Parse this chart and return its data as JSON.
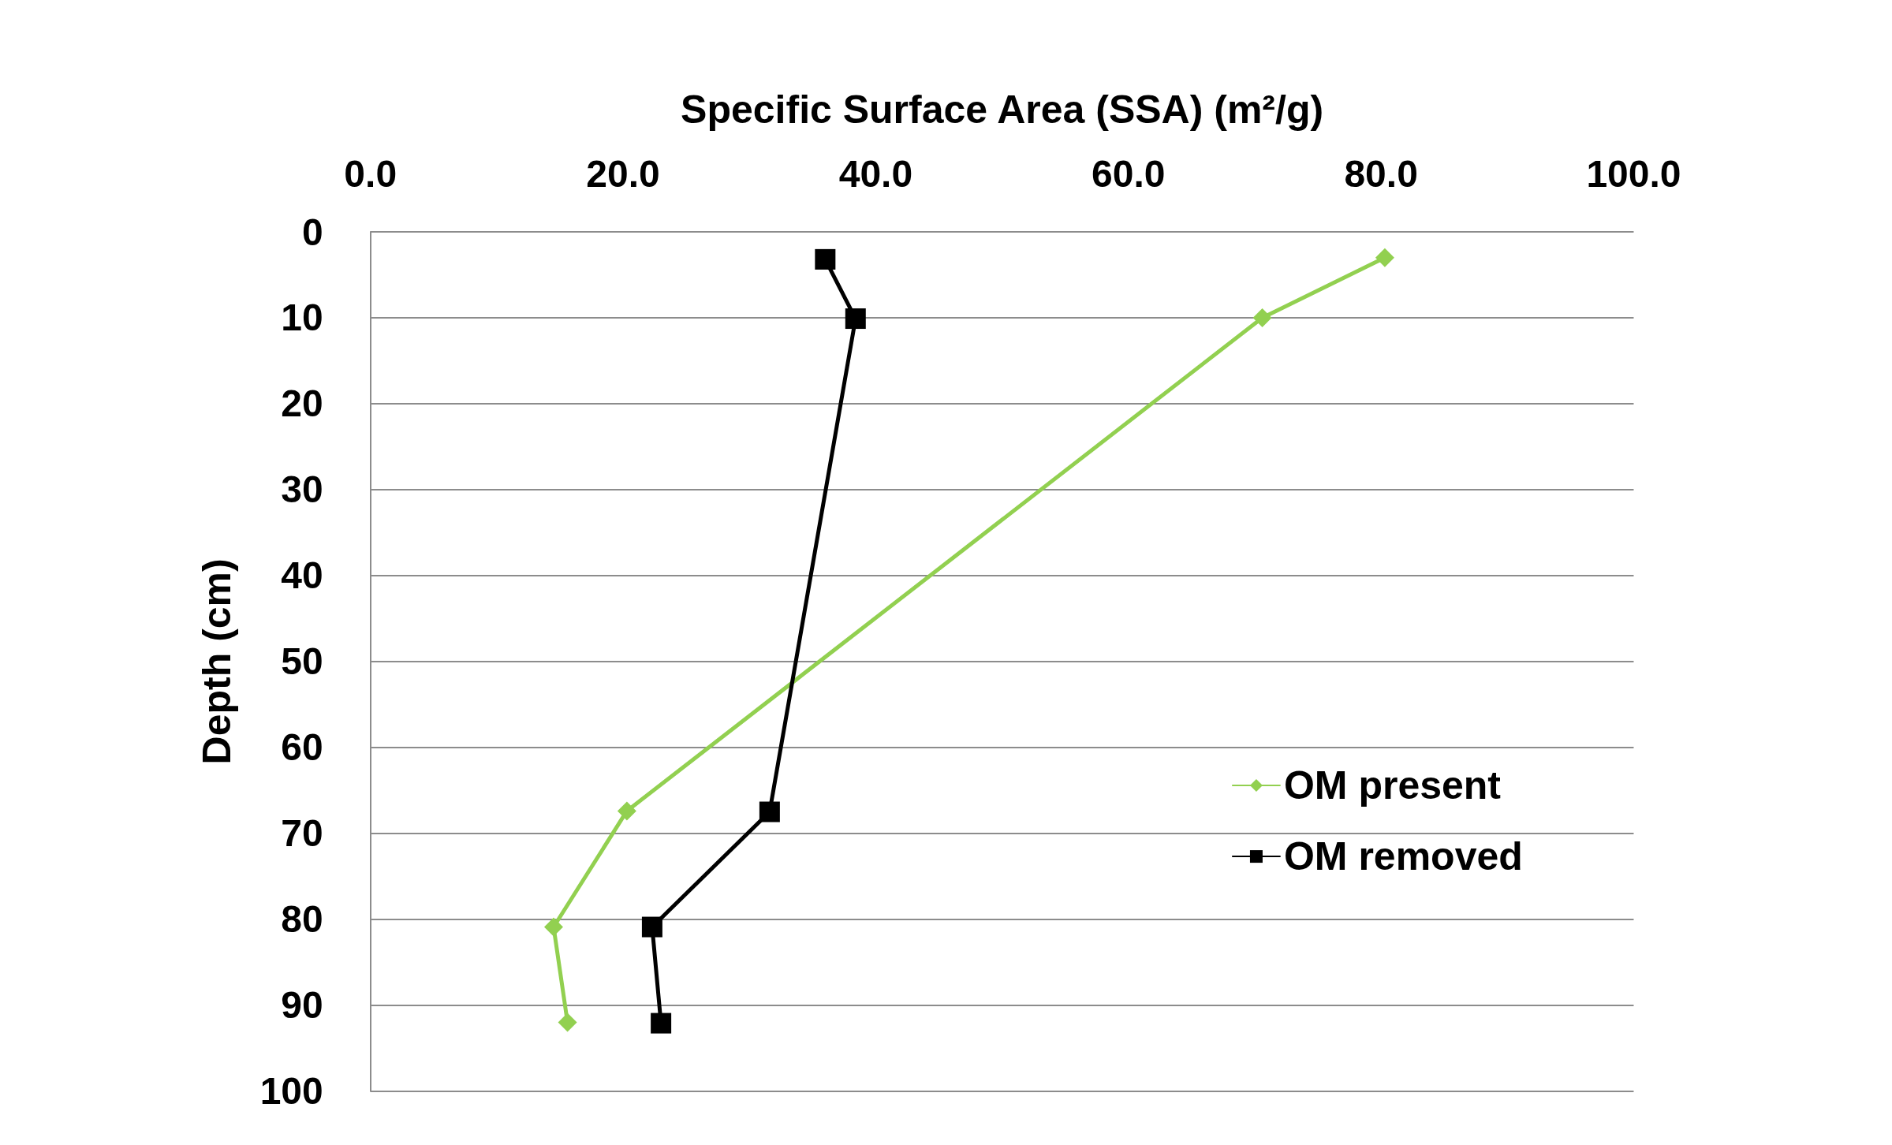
{
  "chart_data": {
    "type": "line",
    "xlabel": "Specific Surface Area (SSA) (m²/g)",
    "ylabel": "Depth (cm)",
    "xlim": [
      0,
      100
    ],
    "xticks": [
      {
        "value": 0,
        "label": "0.0"
      },
      {
        "value": 20,
        "label": "20.0"
      },
      {
        "value": 40,
        "label": "40.0"
      },
      {
        "value": 60,
        "label": "60.0"
      },
      {
        "value": 80,
        "label": "80.0"
      },
      {
        "value": 100,
        "label": "100.0"
      }
    ],
    "ylim": [
      100,
      0
    ],
    "yticks": [
      0,
      10,
      20,
      30,
      40,
      50,
      60,
      70,
      80,
      90,
      100
    ],
    "grid": "y",
    "legend": "bottom right",
    "line_style": "solid",
    "series": [
      {
        "name": "OM present",
        "color": "#92d050",
        "marker": "diamond",
        "x": [
          80.3,
          70.6,
          20.3,
          14.5,
          15.6
        ],
        "values": [
          3,
          10,
          67.4,
          80.9,
          92
        ]
      },
      {
        "name": "OM removed",
        "color": "#000000",
        "marker": "square",
        "x": [
          36,
          38.4,
          31.6,
          22.3,
          23
        ],
        "values": [
          3.2,
          10.1,
          67.5,
          80.9,
          92.1
        ]
      }
    ]
  }
}
